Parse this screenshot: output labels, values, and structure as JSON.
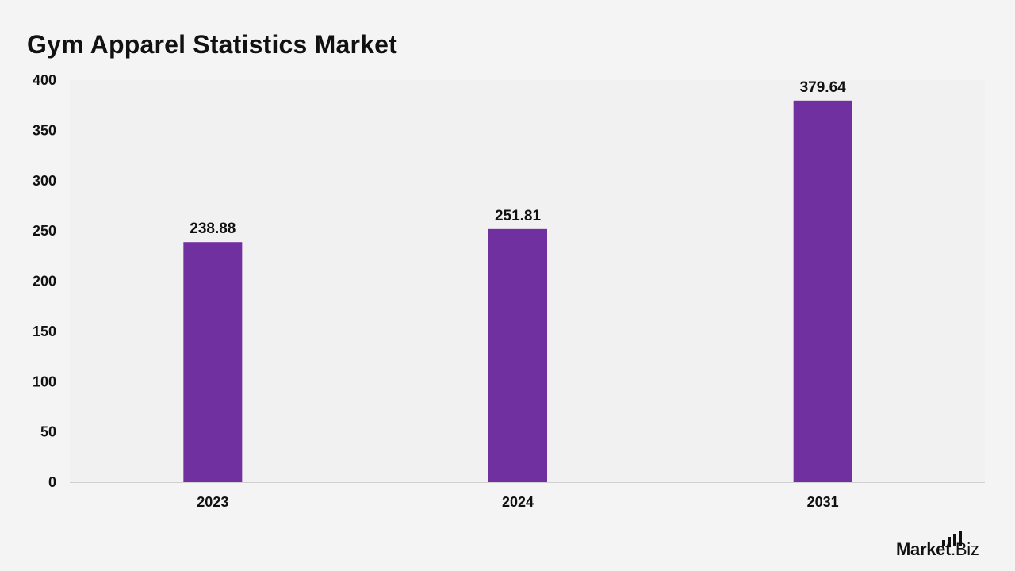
{
  "chart_data": {
    "type": "bar",
    "title": "Gym Apparel Statistics Market",
    "categories": [
      "2023",
      "2024",
      "2031"
    ],
    "values": [
      238.88,
      251.81,
      379.64
    ],
    "value_labels": [
      "238.88",
      "251.81",
      "379.64"
    ],
    "xlabel": "",
    "ylabel": "",
    "ylim": [
      0,
      400
    ],
    "yticks": [
      0,
      50,
      100,
      150,
      200,
      250,
      300,
      350,
      400
    ],
    "grid": false,
    "legend": "none",
    "bar_color": "#7030a0",
    "plot_background": "#f1f1f1",
    "page_background": "#f4f4f4"
  },
  "branding": {
    "logo_main": "Market",
    "logo_suffix": ".Biz"
  }
}
